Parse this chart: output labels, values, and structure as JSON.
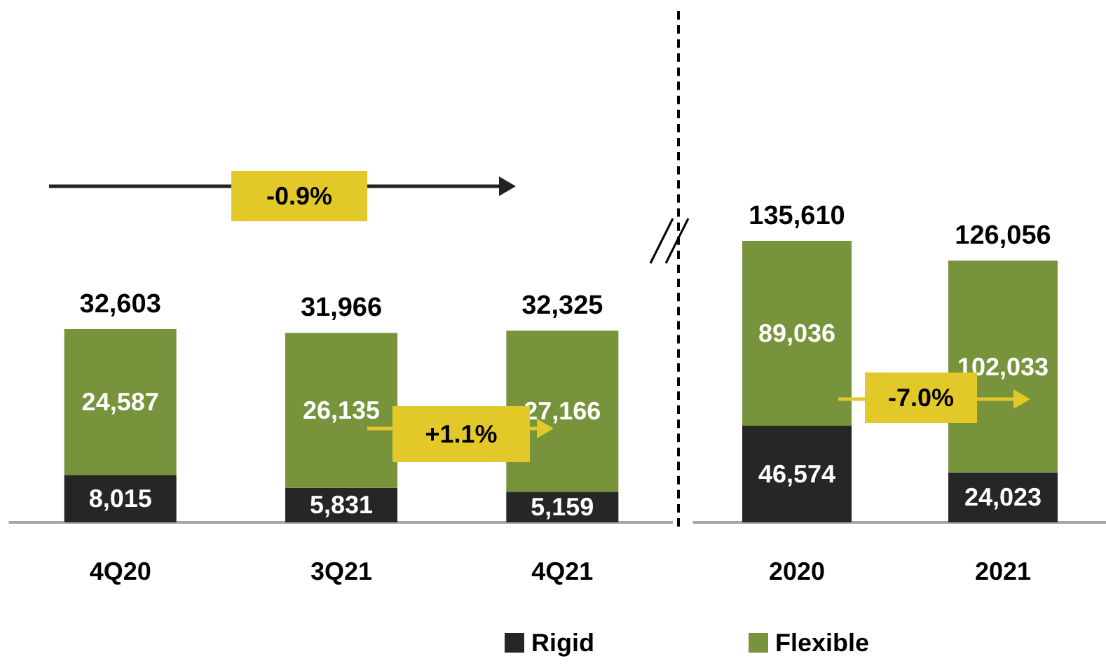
{
  "chart_data": [
    {
      "type": "bar",
      "stacked": true,
      "categories": [
        "4Q20",
        "3Q21",
        "4Q21"
      ],
      "series": [
        {
          "color": "#262626",
          "values": [
            8015,
            5831,
            5159
          ],
          "value_labels": [
            "8,015",
            "5,831",
            "5,159"
          ]
        },
        {
          "color": "#77933c",
          "values": [
            24587,
            26135,
            27166
          ],
          "value_labels": [
            "24,587",
            "26,135",
            "27,166"
          ]
        }
      ],
      "totals": [
        "32,603",
        "31,966",
        "32,325"
      ],
      "annotations": [
        "-0.9%",
        "+1.1%"
      ],
      "grid": false
    },
    {
      "type": "bar",
      "stacked": true,
      "categories": [
        "2020",
        "2021"
      ],
      "series": [
        {
          "name": "Rigid",
          "color": "#262626",
          "values": [
            46574,
            24023
          ],
          "value_labels": [
            "46,574",
            "24,023"
          ]
        },
        {
          "name": "Flexible",
          "color": "#77933c",
          "values": [
            89036,
            102033
          ],
          "value_labels": [
            "89,036",
            "102,033"
          ]
        }
      ],
      "totals": [
        "135,610",
        "126,056"
      ],
      "annotations": [
        "-7.0%"
      ],
      "legend": "bottom",
      "grid": false
    }
  ]
}
